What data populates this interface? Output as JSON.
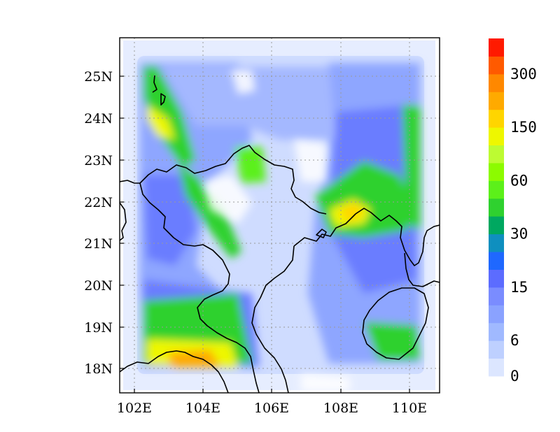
{
  "map": {
    "lon_labels": [
      "102E",
      "104E",
      "106E",
      "108E",
      "110E"
    ],
    "lat_labels": [
      "25N",
      "24N",
      "23N",
      "22N",
      "21N",
      "20N",
      "19N",
      "18N"
    ],
    "lon_values": [
      102,
      104,
      106,
      108,
      110
    ],
    "lat_values": [
      25,
      24,
      23,
      22,
      21,
      20,
      19,
      18
    ],
    "lon_range": [
      101.6,
      110.8
    ],
    "lat_range": [
      17.45,
      25.9
    ],
    "grid": "dotted"
  },
  "colorbar": {
    "colors": [
      "#dce6ff",
      "#bed0ff",
      "#a0b9ff",
      "#8aa2ff",
      "#7a8cff",
      "#5c6cff",
      "#1f68ff",
      "#0f8fbf",
      "#00a860",
      "#2fd12f",
      "#5cf01a",
      "#8cfb00",
      "#bdfb32",
      "#eef700",
      "#ffd500",
      "#ffaa00",
      "#ff8800",
      "#ff5a00",
      "#ff1a00"
    ],
    "labels": [
      "0",
      "6",
      "15",
      "30",
      "60",
      "150",
      "300"
    ],
    "label_boundaries": [
      0,
      2,
      5,
      8,
      11,
      14,
      17
    ]
  }
}
